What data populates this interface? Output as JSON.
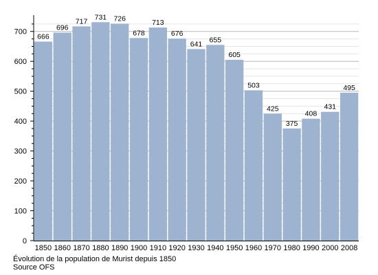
{
  "chart_data": {
    "type": "bar",
    "categories": [
      "1850",
      "1860",
      "1870",
      "1880",
      "1890",
      "1900",
      "1910",
      "1920",
      "1930",
      "1940",
      "1950",
      "1960",
      "1970",
      "1980",
      "1990",
      "2000",
      "2008"
    ],
    "values": [
      666,
      696,
      717,
      731,
      726,
      678,
      713,
      676,
      641,
      655,
      605,
      503,
      425,
      375,
      408,
      431,
      495
    ],
    "ylim": [
      0,
      750
    ],
    "yticks": [
      0,
      100,
      200,
      300,
      400,
      500,
      600,
      700
    ],
    "grid": true,
    "data_labels": true,
    "bar_color": "#9db3cf",
    "title": "",
    "xlabel": "",
    "ylabel": ""
  },
  "caption": {
    "title": "Évolution de la population de Murist depuis 1850",
    "source": "Source OFS"
  }
}
